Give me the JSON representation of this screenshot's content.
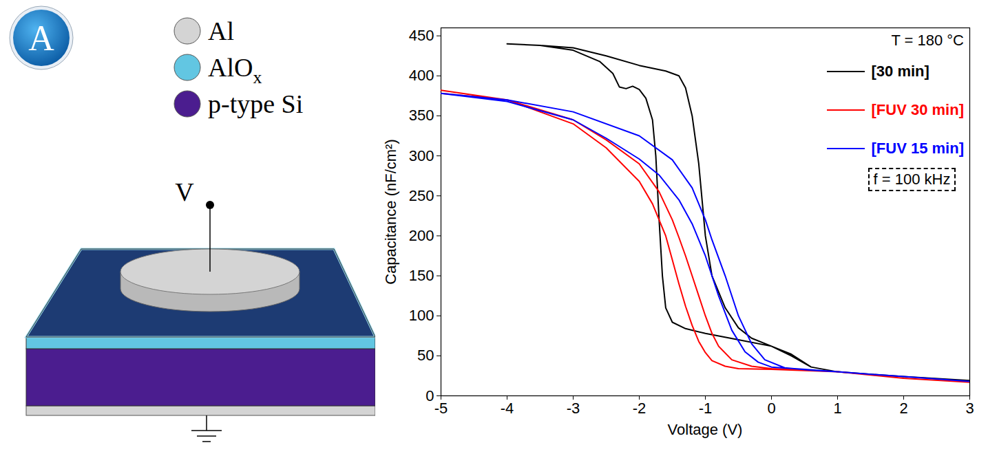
{
  "chart_data": {
    "type": "line",
    "x_label": "Voltage (V)",
    "y_label": "Capacitance (nF/cm²)",
    "xlim": [
      -5,
      3
    ],
    "xticks": [
      -5,
      -4,
      -3,
      -2,
      -1,
      0,
      1,
      2,
      3
    ],
    "ylim": [
      0,
      460
    ],
    "yticks": [
      0,
      50,
      100,
      150,
      200,
      250,
      300,
      350,
      400,
      450
    ],
    "legend": "top-right",
    "annotations": [
      "T = 180 °C",
      "f = 100 kHz"
    ],
    "series": [
      {
        "name": "[30 min]",
        "color": "#000000",
        "x": [
          -4,
          -3.5,
          -3,
          -2.6,
          -2.4,
          -2.3,
          -2.2,
          -2.1,
          -2.0,
          -1.9,
          -1.8,
          -1.75,
          -1.7,
          -1.65,
          -1.6,
          -1.5,
          -1.3,
          -1.0,
          -0.5,
          0,
          0.3,
          0.6,
          1,
          2,
          3,
          2,
          1,
          0.6,
          0.3,
          0,
          -0.3,
          -0.5,
          -0.7,
          -0.9,
          -1.0,
          -1.1,
          -1.2,
          -1.3,
          -1.4,
          -1.6,
          -2.0,
          -2.5,
          -3,
          -3.5,
          -4
        ],
        "values": [
          440,
          438,
          432,
          418,
          403,
          386,
          384,
          387,
          383,
          372,
          345,
          300,
          220,
          150,
          110,
          92,
          84,
          78,
          70,
          62,
          52,
          36,
          30,
          24,
          19,
          24,
          30,
          36,
          50,
          62,
          72,
          85,
          110,
          150,
          200,
          290,
          350,
          385,
          400,
          406,
          413,
          425,
          435,
          438,
          440
        ]
      },
      {
        "name": "[FUV 30 min]",
        "color": "#ff0000",
        "x": [
          -5,
          -4,
          -3,
          -2.5,
          -2,
          -1.8,
          -1.6,
          -1.5,
          -1.4,
          -1.3,
          -1.2,
          -1.1,
          -1.0,
          -0.9,
          -0.7,
          -0.5,
          0,
          1,
          2,
          3,
          2,
          1,
          0,
          -0.3,
          -0.6,
          -0.8,
          -0.9,
          -1.0,
          -1.1,
          -1.2,
          -1.3,
          -1.4,
          -1.5,
          -1.7,
          -2,
          -2.5,
          -3,
          -4,
          -5
        ],
        "values": [
          382,
          370,
          340,
          310,
          268,
          240,
          200,
          170,
          140,
          112,
          88,
          68,
          54,
          44,
          37,
          34,
          33,
          30,
          22,
          17,
          22,
          30,
          34,
          37,
          45,
          62,
          78,
          100,
          125,
          150,
          175,
          198,
          220,
          255,
          290,
          320,
          345,
          370,
          378
        ]
      },
      {
        "name": "[FUV 15 min]",
        "color": "#0000ff",
        "x": [
          -5,
          -4,
          -3,
          -2.5,
          -2,
          -1.7,
          -1.4,
          -1.2,
          -1.0,
          -0.8,
          -0.6,
          -0.4,
          -0.2,
          0,
          0.5,
          1,
          2,
          3,
          2,
          1,
          0.6,
          0.2,
          -0.1,
          -0.3,
          -0.5,
          -0.7,
          -0.9,
          -1.0,
          -1.2,
          -1.5,
          -2,
          -3,
          -4,
          -5
        ],
        "values": [
          378,
          368,
          345,
          322,
          296,
          276,
          245,
          215,
          175,
          125,
          82,
          55,
          42,
          36,
          33,
          30,
          24,
          18,
          24,
          30,
          32,
          35,
          45,
          65,
          100,
          150,
          195,
          220,
          260,
          295,
          325,
          355,
          370,
          378
        ]
      }
    ]
  },
  "diagram": {
    "badge": "A",
    "terminal": "V",
    "materials": [
      {
        "label": "Al",
        "color": "#d4d4d4"
      },
      {
        "label": "AlO",
        "subscript": "x",
        "color": "#62c6e2"
      },
      {
        "label": "p-type Si",
        "color": "#4b1d8f"
      }
    ]
  }
}
